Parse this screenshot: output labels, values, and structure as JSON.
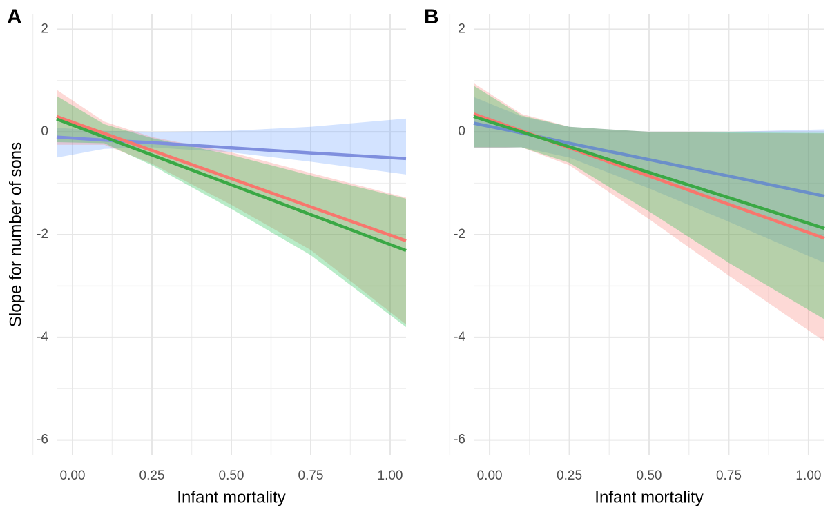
{
  "chart_data": [
    {
      "type": "line",
      "title": "A",
      "x_label": "Infant mortality",
      "y_label": "Slope for number of sons",
      "x": [
        -0.05,
        0.1,
        0.25,
        0.5,
        0.75,
        1.05
      ],
      "xlim": [
        -0.05,
        1.05
      ],
      "ylim": [
        -6.3,
        2.3
      ],
      "xticks": [
        {
          "value": 0,
          "label": "0.00"
        },
        {
          "value": 0.25,
          "label": "0.25"
        },
        {
          "value": 0.5,
          "label": "0.50"
        },
        {
          "value": 0.75,
          "label": "0.75"
        },
        {
          "value": 1,
          "label": "1.00"
        }
      ],
      "yticks": [
        2,
        0,
        -2,
        -4,
        -6
      ],
      "grid": true,
      "minor_grid": true,
      "series": [
        {
          "color": "#7f8fde",
          "ribbon_color": "#619cff",
          "values": [
            -0.1,
            -0.16,
            -0.21,
            -0.31,
            -0.41,
            -0.52
          ],
          "lower": [
            -0.5,
            -0.33,
            -0.3,
            -0.4,
            -0.58,
            -0.83
          ],
          "upper": [
            0.08,
            0.02,
            0.0,
            0.02,
            0.1,
            0.26
          ]
        },
        {
          "color": "#f8766d",
          "ribbon_color": "#f8766d",
          "values": [
            0.3,
            -0.03,
            -0.36,
            -0.91,
            -1.46,
            -2.12
          ],
          "lower": [
            -0.25,
            -0.25,
            -0.62,
            -1.42,
            -2.3,
            -3.75
          ],
          "upper": [
            0.82,
            0.2,
            -0.1,
            -0.4,
            -0.8,
            -1.28
          ]
        },
        {
          "color": "#3aa845",
          "ribbon_color": "#00ba38",
          "values": [
            0.25,
            -0.1,
            -0.45,
            -1.03,
            -1.61,
            -2.31
          ],
          "lower": [
            -0.2,
            -0.22,
            -0.65,
            -1.5,
            -2.4,
            -3.8
          ],
          "upper": [
            0.7,
            0.15,
            -0.12,
            -0.45,
            -0.85,
            -1.3
          ]
        }
      ]
    },
    {
      "type": "line",
      "title": "B",
      "x_label": "Infant mortality",
      "x": [
        -0.05,
        0.1,
        0.25,
        0.5,
        0.75,
        1.05
      ],
      "xlim": [
        -0.05,
        1.05
      ],
      "ylim": [
        -6.3,
        2.3
      ],
      "xticks": [
        {
          "value": 0,
          "label": "0.00"
        },
        {
          "value": 0.25,
          "label": "0.25"
        },
        {
          "value": 0.5,
          "label": "0.50"
        },
        {
          "value": 0.75,
          "label": "0.75"
        },
        {
          "value": 1,
          "label": "1.00"
        }
      ],
      "yticks": [
        2,
        0,
        -2,
        -4,
        -6
      ],
      "grid": true,
      "minor_grid": true,
      "series": [
        {
          "color": "#6b8fc9",
          "ribbon_color": "#619cff",
          "values": [
            0.17,
            -0.02,
            -0.22,
            -0.54,
            -0.86,
            -1.25
          ],
          "lower": [
            -0.32,
            -0.3,
            -0.5,
            -1.1,
            -1.75,
            -2.55
          ],
          "upper": [
            0.68,
            0.3,
            0.1,
            0.0,
            0.0,
            0.05
          ]
        },
        {
          "color": "#f8766d",
          "ribbon_color": "#f8766d",
          "values": [
            0.35,
            0.02,
            -0.31,
            -0.86,
            -1.41,
            -2.07
          ],
          "lower": [
            -0.32,
            -0.3,
            -0.65,
            -1.7,
            -2.8,
            -4.08
          ],
          "upper": [
            0.95,
            0.35,
            0.1,
            0.0,
            -0.02,
            -0.03
          ]
        },
        {
          "color": "#3aa845",
          "ribbon_color": "#00ba38",
          "values": [
            0.3,
            0.0,
            -0.29,
            -0.79,
            -1.28,
            -1.88
          ],
          "lower": [
            -0.3,
            -0.3,
            -0.6,
            -1.55,
            -2.55,
            -3.65
          ],
          "upper": [
            0.9,
            0.32,
            0.1,
            0.0,
            -0.01,
            -0.02
          ]
        }
      ]
    }
  ]
}
